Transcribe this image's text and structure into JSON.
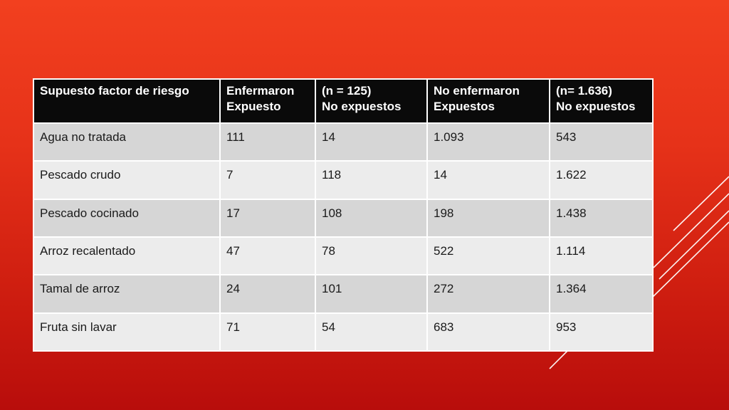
{
  "table": {
    "headers": [
      "Supuesto factor de riesgo",
      "Enfermaron\nExpuesto",
      "(n = 125)\nNo expuestos",
      "No enfermaron\nExpuestos",
      " (n= 1.636)\nNo expuestos"
    ],
    "rows": [
      [
        "Agua no tratada",
        "111",
        "14",
        "1.093",
        "543"
      ],
      [
        "Pescado crudo",
        "7",
        "118",
        "14",
        "1.622"
      ],
      [
        "Pescado cocinado",
        "17",
        "108",
        "198",
        "1.438"
      ],
      [
        "Arroz recalentado",
        "47",
        "78",
        "522",
        "1.114"
      ],
      [
        "Tamal de arroz",
        "24",
        "101",
        "272",
        "1.364"
      ],
      [
        "Fruta sin lavar",
        "71",
        "54",
        "683",
        "953"
      ]
    ]
  },
  "colors": {
    "background_top": "#f2401f",
    "background_bottom": "#b80d0b",
    "header_bg": "#0a0a0a",
    "row_dark": "#d6d6d6",
    "row_light": "#ececec"
  }
}
